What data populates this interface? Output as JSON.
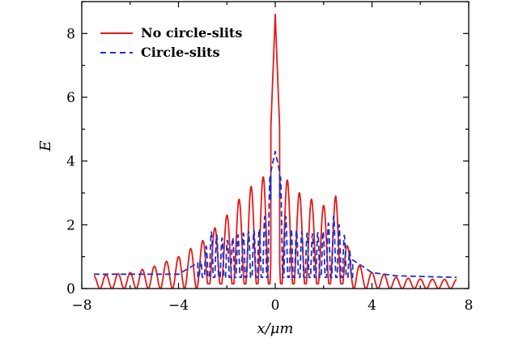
{
  "chart_data": {
    "type": "line",
    "xlabel": "x/μm",
    "ylabel": "E",
    "xlim": [
      -8,
      8
    ],
    "ylim": [
      0,
      9
    ],
    "x_ticks": [
      -8,
      -4,
      0,
      4,
      8
    ],
    "x_tick_labels": [
      "−8",
      "−4",
      "0",
      "4",
      "8"
    ],
    "y_ticks": [
      0,
      2,
      4,
      6,
      8
    ],
    "y_tick_labels": [
      "0",
      "2",
      "4",
      "6",
      "8"
    ],
    "grid": false,
    "legend_position": "top-left",
    "series": [
      {
        "name": "No circle-slits",
        "color": "#e31a1c",
        "line_style": "solid",
        "envelope_x": [
          -7.5,
          -6.0,
          -5.0,
          -4.0,
          -3.0,
          -2.5,
          -2.0,
          -1.5,
          -1.0,
          -0.5,
          -0.25,
          0,
          0.25,
          0.5,
          1.0,
          1.5,
          2.0,
          2.5,
          3.0,
          3.5,
          4.0,
          4.5,
          5.0,
          6.0,
          7.5
        ],
        "envelope_y": [
          0.4,
          0.5,
          0.7,
          1.0,
          1.5,
          1.9,
          2.3,
          2.8,
          3.2,
          3.5,
          3.7,
          8.6,
          3.7,
          3.4,
          3.0,
          2.8,
          2.6,
          2.9,
          1.3,
          0.7,
          0.5,
          0.45,
          0.35,
          0.3,
          0.28
        ]
      },
      {
        "name": "Circle-slits",
        "color": "#2030c8",
        "line_style": "dashed",
        "envelope_x": [
          -7.5,
          -4.0,
          -3.0,
          -2.7,
          -2.0,
          -1.5,
          -1.0,
          -0.5,
          -0.2,
          0,
          0.2,
          0.5,
          1.0,
          1.5,
          2.0,
          2.4,
          2.8,
          3.2,
          4.0,
          5.0,
          7.5
        ],
        "envelope_y": [
          0.45,
          0.45,
          0.9,
          1.8,
          1.5,
          1.7,
          1.8,
          1.9,
          3.6,
          4.3,
          3.6,
          1.9,
          1.8,
          1.7,
          1.8,
          2.3,
          1.8,
          0.9,
          0.5,
          0.4,
          0.35
        ]
      }
    ]
  }
}
